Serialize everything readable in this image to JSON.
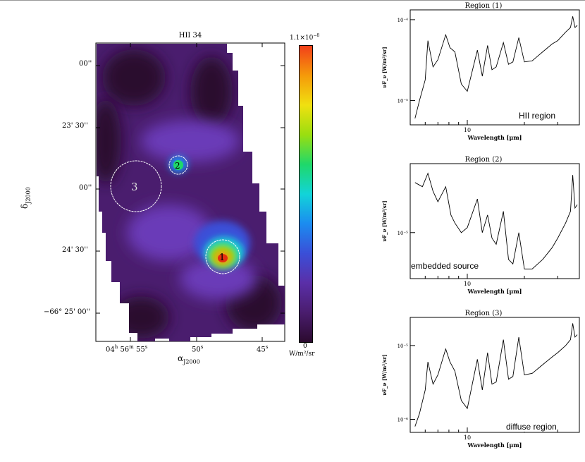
{
  "map": {
    "title": "HII 34",
    "ra_label": "α",
    "ra_sub": "J2000",
    "dec_label": "δ",
    "dec_sub": "J2000",
    "ra_ticks": [
      {
        "h": "04",
        "m": "56",
        "s": "55"
      },
      {
        "s": "50"
      },
      {
        "s": "45"
      }
    ],
    "dec_ticks": [
      "00''",
      "23' 30''",
      "00''",
      "24' 30''",
      "−66° 25' 00''"
    ],
    "regions": [
      "1",
      "2",
      "3"
    ]
  },
  "colorbar": {
    "max_label": "1.1×10",
    "max_exp": "−8",
    "min_label": "0",
    "unit": "W/m²/sr",
    "colors": [
      "#2b0a2e",
      "#4a1d6e",
      "#5a2fa8",
      "#3a4fd8",
      "#1b8cf0",
      "#12d4d8",
      "#1fd86a",
      "#9ade10",
      "#f0e010",
      "#f59a0a",
      "#f2401a"
    ]
  },
  "chart_data": [
    {
      "type": "line",
      "title": "Region (1)",
      "xlabel": "Wavelength [μm]",
      "ylabel": "νF_ν [W/m²/sr]",
      "xscale": "log",
      "yscale": "log",
      "x_ticks": [
        "10"
      ],
      "y_ticks": [
        "10⁻⁴",
        "10⁻⁵"
      ],
      "annotation": "HII region",
      "annotation_pos": "bottom-right",
      "x": [
        5.3,
        5.6,
        6.0,
        6.2,
        6.6,
        7.0,
        7.7,
        8.1,
        8.6,
        9.3,
        10.0,
        11.3,
        12.0,
        12.8,
        13.5,
        14.2,
        15.5,
        16.5,
        17.4,
        18.7,
        20,
        22,
        25,
        28,
        30,
        33,
        35,
        36,
        37,
        38
      ],
      "y": [
        6e-06,
        1e-05,
        1.8e-05,
        5.5e-05,
        2.6e-05,
        3.2e-05,
        6.5e-05,
        4.5e-05,
        4e-05,
        1.6e-05,
        1.3e-05,
        4.2e-05,
        2e-05,
        4.8e-05,
        2.4e-05,
        2.6e-05,
        5.2e-05,
        2.8e-05,
        3e-05,
        6e-05,
        3e-05,
        3.1e-05,
        4e-05,
        5e-05,
        5.5e-05,
        7e-05,
        8e-05,
        0.00011,
        8e-05,
        8.5e-05
      ]
    },
    {
      "type": "line",
      "title": "Region (2)",
      "xlabel": "Wavelength [μm]",
      "ylabel": "νF_ν [W/m²/sr]",
      "xscale": "log",
      "yscale": "log",
      "x_ticks": [
        "10"
      ],
      "y_ticks": [
        "10⁻⁵"
      ],
      "annotation": "embedded source",
      "annotation_pos": "bottom-left",
      "x": [
        5.3,
        5.8,
        6.2,
        6.6,
        7.0,
        7.7,
        8.2,
        8.6,
        9.3,
        10.0,
        11.3,
        12.0,
        12.8,
        13.5,
        14.2,
        15.5,
        16.5,
        17.4,
        18.7,
        20,
        22,
        25,
        28,
        30,
        33,
        35,
        36,
        37,
        38
      ],
      "y": [
        2.6e-05,
        2.4e-05,
        3.1e-05,
        2.2e-05,
        1.8e-05,
        2.4e-05,
        1.4e-05,
        1.2e-05,
        1e-05,
        1.1e-05,
        1.9e-05,
        1e-05,
        1.4e-05,
        9e-06,
        8e-06,
        1.5e-05,
        6e-06,
        5.5e-06,
        1e-05,
        5e-06,
        5e-06,
        6e-06,
        7.5e-06,
        9e-06,
        1.2e-05,
        1.5e-05,
        3e-05,
        1.6e-05,
        1.7e-05
      ]
    },
    {
      "type": "line",
      "title": "Region (3)",
      "xlabel": "Wavelength [μm]",
      "ylabel": "νF_ν [W/m²/sr]",
      "xscale": "log",
      "yscale": "log",
      "x_ticks": [
        "10"
      ],
      "y_ticks": [
        "10⁻⁵",
        "10⁻⁶"
      ],
      "annotation": "diffuse region",
      "annotation_pos": "bottom-right",
      "x": [
        5.3,
        5.6,
        6.0,
        6.2,
        6.6,
        7.0,
        7.7,
        8.1,
        8.6,
        9.3,
        10.0,
        11.3,
        12.0,
        12.8,
        13.5,
        14.2,
        15.5,
        16.5,
        17.4,
        18.7,
        20,
        22,
        25,
        28,
        30,
        33,
        35,
        36,
        37,
        38
      ],
      "y": [
        8e-07,
        1.2e-06,
        2.5e-06,
        6e-06,
        3e-06,
        4e-06,
        9e-06,
        6e-06,
        4.5e-06,
        1.8e-06,
        1.4e-06,
        6.5e-06,
        2.5e-06,
        8e-06,
        3e-06,
        3.2e-06,
        1.2e-05,
        3.5e-06,
        3.8e-06,
        1.3e-05,
        4e-06,
        4.2e-06,
        5.5e-06,
        7e-06,
        8e-06,
        1e-05,
        1.2e-05,
        2e-05,
        1.3e-05,
        1.4e-05
      ]
    }
  ]
}
